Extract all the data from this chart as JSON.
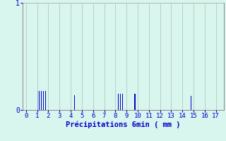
{
  "bar_positions": [
    1.05,
    1.2,
    1.35,
    1.55,
    1.75,
    4.35,
    8.25,
    8.45,
    8.65,
    9.75,
    14.75
  ],
  "bar_heights": [
    0.18,
    0.18,
    0.18,
    0.18,
    0.18,
    0.14,
    0.15,
    0.15,
    0.15,
    0.15,
    0.13
  ],
  "bar_width": 0.07,
  "bar_color": "#0000cc",
  "background_color": "#d8f5ee",
  "plot_bg_color": "#d8f5ee",
  "xlabel": "Précipitations 6min ( mm )",
  "xlabel_color": "#0000cc",
  "xlim": [
    -0.3,
    17.7
  ],
  "ylim": [
    0,
    1.0
  ],
  "yticks": [
    0,
    1
  ],
  "xticks": [
    0,
    1,
    2,
    3,
    4,
    5,
    6,
    7,
    8,
    9,
    10,
    11,
    12,
    13,
    14,
    15,
    16,
    17
  ],
  "grid_color": "#b8c8b8",
  "tick_color": "#0000cc",
  "axis_color": "#888888",
  "figsize": [
    3.2,
    2.0
  ],
  "dpi": 100
}
